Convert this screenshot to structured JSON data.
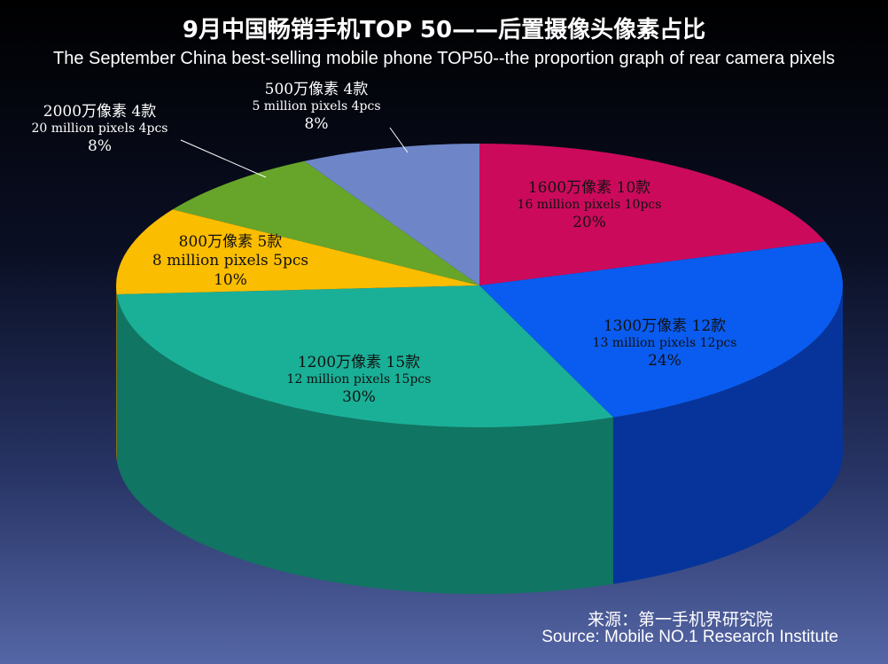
{
  "title_cn": "9月中国畅销手机TOP 50——后置摄像头像素占比",
  "title_en": "The September China best-selling mobile phone TOP50--the proportion graph of rear camera pixels",
  "source_cn": "来源：第一手机界研究院",
  "source_en": "Source: Mobile NO.1 Research Institute",
  "chart_data": {
    "type": "pie",
    "title": "9月中国畅销手机TOP 50——后置摄像头像素占比",
    "subtitle": "The September China best-selling mobile phone TOP50--the proportion graph of rear camera pixels",
    "unit": "款 / pcs",
    "total": 50,
    "slices": [
      {
        "key": "s1600",
        "label_cn": "1600万像素 10款",
        "label_en": "16 million pixels  10pcs",
        "count": 10,
        "percent": "20%",
        "value": 20,
        "color": "#cc0a5c",
        "side_color": "#7a0636"
      },
      {
        "key": "s1300",
        "label_cn": "1300万像素 12款",
        "label_en": "13 million pixels  12pcs",
        "count": 12,
        "percent": "24%",
        "value": 24,
        "color": "#0a5cf0",
        "side_color": "#06349a"
      },
      {
        "key": "s1200",
        "label_cn": "1200万像素 15款",
        "label_en": "12 million pixels  15pcs",
        "count": 15,
        "percent": "30%",
        "value": 30,
        "color": "#1ab097",
        "side_color": "#107562"
      },
      {
        "key": "s800",
        "label_cn": "800万像素  5款",
        "label_en": "8 million pixels 5pcs",
        "count": 5,
        "percent": "10%",
        "value": 10,
        "color": "#fbbd00",
        "side_color": "#a07800"
      },
      {
        "key": "s2000",
        "label_cn": "2000万像素 4款",
        "label_en": "20 million pixels  4pcs",
        "count": 4,
        "percent": "8%",
        "value": 8,
        "color": "#67a52a",
        "side_color": "#3f6a16"
      },
      {
        "key": "s500",
        "label_cn": "500万像素  4款",
        "label_en": "5 million pixels 4pcs",
        "count": 4,
        "percent": "8%",
        "value": 8,
        "color": "#6e86c8",
        "side_color": "#43558a"
      }
    ]
  }
}
